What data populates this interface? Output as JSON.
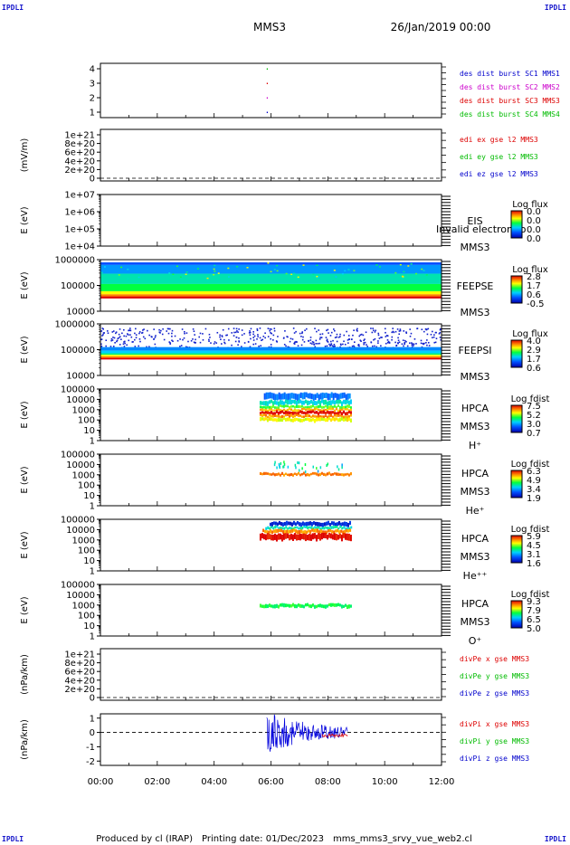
{
  "corner_tag": "IPDLI",
  "spacecraft": "MMS3",
  "date_title": "26/Jan/2019 00:00",
  "footer": {
    "produced_by": "Produced by cl (IRAP)",
    "printing_date": "Printing date: 01/Dec/2023",
    "filename": "mms_mms3_srvy_vue_web2.cl"
  },
  "chart_data": {
    "type": "multi-panel",
    "x_ticks": [
      "00:00",
      "02:00",
      "04:00",
      "06:00",
      "08:00",
      "10:00",
      "12:00"
    ],
    "xlim_hours": [
      0,
      12
    ],
    "panels": [
      {
        "id": "des-dist-burst",
        "type": "scatter",
        "ylabel": "",
        "yticks": [
          "4",
          "3",
          "2",
          "1"
        ],
        "points": [
          {
            "hour": 5.85,
            "sc": 4
          },
          {
            "hour": 5.85,
            "sc": 3
          },
          {
            "hour": 5.85,
            "sc": 2
          },
          {
            "hour": 5.85,
            "sc": 1
          }
        ],
        "legend": [
          {
            "text": "des dist burst SC1 MMS1",
            "color": "#0000cc"
          },
          {
            "text": "des dist burst SC2 MMS2",
            "color": "#cc00cc"
          },
          {
            "text": "des dist burst SC3 MMS3",
            "color": "#dd0000"
          },
          {
            "text": "des dist burst SC4 MMS4",
            "color": "#00bb00"
          }
        ]
      },
      {
        "id": "edi-e",
        "type": "line",
        "ylabel": "(mV/m)",
        "yticks": [
          "1e+21",
          "8e+20",
          "6e+20",
          "4e+20",
          "2e+20",
          "0"
        ],
        "legend": [
          {
            "text": "edi ex gse l2 MMS3",
            "color": "#dd0000"
          },
          {
            "text": "edi ey gse l2 MMS3",
            "color": "#00bb00"
          },
          {
            "text": "edi ez gse l2 MMS3",
            "color": "#0000cc"
          }
        ]
      },
      {
        "id": "eis",
        "type": "heatmap",
        "ylabel": "E (eV)",
        "yticks": [
          "1e+07",
          "1e+06",
          "1e+05",
          "1e+04"
        ],
        "labels": [
          "EIS",
          "MMS3"
        ],
        "overlay_text": "Invalid electron to",
        "colorbar": {
          "title": "Log flux",
          "ticks": [
            "0.0",
            "0.0",
            "0.0",
            "0.0"
          ]
        }
      },
      {
        "id": "feeps-e",
        "type": "heatmap",
        "ylabel": "E (eV)",
        "yticks": [
          "1000000",
          "100000",
          "10000"
        ],
        "labels": [
          "FEEPSE",
          "MMS3"
        ],
        "colorbar": {
          "title": "Log flux",
          "ticks": [
            "2.8",
            "1.7",
            "0.6",
            "-0.5"
          ]
        }
      },
      {
        "id": "feeps-i",
        "type": "heatmap",
        "ylabel": "E (eV)",
        "yticks": [
          "1000000",
          "100000",
          "10000"
        ],
        "labels": [
          "FEEPSI",
          "MMS3"
        ],
        "colorbar": {
          "title": "Log flux",
          "ticks": [
            "4.0",
            "2.9",
            "1.7",
            "0.6"
          ]
        }
      },
      {
        "id": "hpca-h",
        "type": "heatmap",
        "ylabel": "E (eV)",
        "yticks": [
          "100000",
          "10000",
          "1000",
          "100",
          "10",
          "1"
        ],
        "labels": [
          "HPCA",
          "MMS3",
          "H⁺"
        ],
        "colorbar": {
          "title": "Log fdist",
          "ticks": [
            "7.5",
            "5.2",
            "3.0",
            "0.7"
          ]
        }
      },
      {
        "id": "hpca-he1",
        "type": "heatmap",
        "ylabel": "E (eV)",
        "yticks": [
          "100000",
          "10000",
          "1000",
          "100",
          "10",
          "1"
        ],
        "labels": [
          "HPCA",
          "MMS3",
          "He⁺"
        ],
        "colorbar": {
          "title": "Log fdist",
          "ticks": [
            "6.3",
            "4.9",
            "3.4",
            "1.9"
          ]
        }
      },
      {
        "id": "hpca-he2",
        "type": "heatmap",
        "ylabel": "E (eV)",
        "yticks": [
          "100000",
          "10000",
          "1000",
          "100",
          "10",
          "1"
        ],
        "labels": [
          "HPCA",
          "MMS3",
          "He⁺⁺"
        ],
        "colorbar": {
          "title": "Log fdist",
          "ticks": [
            "5.9",
            "4.5",
            "3.1",
            "1.6"
          ]
        }
      },
      {
        "id": "hpca-o",
        "type": "heatmap",
        "ylabel": "E (eV)",
        "yticks": [
          "100000",
          "10000",
          "1000",
          "100",
          "10",
          "1"
        ],
        "labels": [
          "HPCA",
          "MMS3",
          "O⁺"
        ],
        "colorbar": {
          "title": "Log fdist",
          "ticks": [
            "9.3",
            "7.9",
            "6.5",
            "5.0"
          ]
        }
      },
      {
        "id": "divpe",
        "type": "line",
        "ylabel": "(nPa/km)",
        "yticks": [
          "1e+21",
          "8e+20",
          "6e+20",
          "4e+20",
          "2e+20",
          "0"
        ],
        "legend": [
          {
            "text": "divPe x gse MMS3",
            "color": "#dd0000"
          },
          {
            "text": "divPe y gse MMS3",
            "color": "#00bb00"
          },
          {
            "text": "divPe z gse MMS3",
            "color": "#0000cc"
          }
        ]
      },
      {
        "id": "divpi",
        "type": "line",
        "ylabel": "(nPa/km)",
        "yticks": [
          "1",
          "0",
          "-1",
          "-2"
        ],
        "ylim": [
          -2.3,
          1.3
        ],
        "active_range_hours": [
          5.85,
          8.7
        ],
        "legend": [
          {
            "text": "divPi x gse MMS3",
            "color": "#dd0000"
          },
          {
            "text": "divPi y gse MMS3",
            "color": "#00bb00"
          },
          {
            "text": "divPi z gse MMS3",
            "color": "#0000cc"
          }
        ]
      }
    ]
  }
}
